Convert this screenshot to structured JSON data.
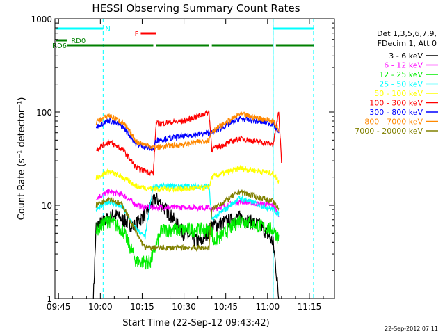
{
  "chart_data": {
    "type": "line",
    "title": "HESSI Observing Summary Count Rates",
    "xlabel": "Start Time (22-Sep-12 09:43:42)",
    "ylabel": "Count Rate (s⁻¹ detector⁻¹)",
    "y_scale": "log",
    "ylim": [
      1,
      1000
    ],
    "xlim": [
      "09:43:42",
      "11:24:00"
    ],
    "x_ticks": [
      "09:45",
      "10:00",
      "10:15",
      "10:30",
      "10:45",
      "11:00",
      "11:15"
    ],
    "y_ticks": [
      "1",
      "10",
      "100",
      "1000"
    ],
    "grid": false,
    "legend_position": "right",
    "legend_header": [
      "Det 1,3,5,6,7,9,",
      "FDecim 1, Att 0"
    ],
    "footer": "22-Sep-2012 07:11",
    "series": [
      {
        "name": "3 - 6 keV",
        "color": "#000000",
        "points": [
          [
            "09:57:30",
            1.0
          ],
          [
            "09:58:30",
            6.0
          ],
          [
            "10:05:00",
            8.0
          ],
          [
            "10:12:00",
            6.0
          ],
          [
            "10:16:00",
            8.0
          ],
          [
            "10:20:00",
            12.0
          ],
          [
            "10:25:00",
            8.0
          ],
          [
            "10:30:00",
            5.0
          ],
          [
            "10:36:00",
            4.0
          ],
          [
            "10:40:00",
            6.0
          ],
          [
            "10:50:00",
            7.5
          ],
          [
            "10:58:00",
            6.0
          ],
          [
            "11:02:00",
            4.0
          ],
          [
            "11:03:30",
            1.5
          ],
          [
            "11:04:00",
            1.0
          ]
        ]
      },
      {
        "name": "6 - 12 keV",
        "color": "#ff00ff",
        "points": [
          [
            "09:58:30",
            12.0
          ],
          [
            "10:03:00",
            14.0
          ],
          [
            "10:08:00",
            13.0
          ],
          [
            "10:13:00",
            10.0
          ],
          [
            "10:16:00",
            9.5
          ],
          [
            "10:19:00",
            9.5
          ],
          [
            "10:30:00",
            9.5
          ],
          [
            "10:39:00",
            9.5
          ],
          [
            "10:40:00",
            9.0
          ],
          [
            "10:50:00",
            11.0
          ],
          [
            "11:02:00",
            10.0
          ],
          [
            "11:04:00",
            8.0
          ]
        ]
      },
      {
        "name": "12 - 25 keV",
        "color": "#00ee00",
        "points": [
          [
            "09:58:30",
            5.5
          ],
          [
            "10:03:00",
            7.0
          ],
          [
            "10:08:00",
            5.5
          ],
          [
            "10:13:00",
            2.5
          ],
          [
            "10:18:00",
            2.5
          ],
          [
            "10:22:00",
            5.5
          ],
          [
            "10:40:00",
            5.5
          ],
          [
            "10:40:30",
            4.0
          ],
          [
            "10:50:00",
            7.0
          ],
          [
            "11:02:00",
            5.5
          ],
          [
            "11:04:00",
            4.5
          ]
        ]
      },
      {
        "name": "25 - 50 keV",
        "color": "#00ffff",
        "points": [
          [
            "09:58:30",
            9.0
          ],
          [
            "10:03:00",
            11.0
          ],
          [
            "10:08:00",
            9.5
          ],
          [
            "10:12:00",
            6.0
          ],
          [
            "10:16:00",
            4.5
          ],
          [
            "10:19:00",
            16.0
          ],
          [
            "10:30:00",
            16.0
          ],
          [
            "10:39:00",
            16.0
          ],
          [
            "10:40:00",
            7.0
          ],
          [
            "10:50:00",
            12.0
          ],
          [
            "11:02:00",
            9.0
          ],
          [
            "11:04:00",
            8.0
          ]
        ]
      },
      {
        "name": "50 - 100 keV",
        "color": "#ffff00",
        "points": [
          [
            "09:58:30",
            20.0
          ],
          [
            "10:03:00",
            23.0
          ],
          [
            "10:08:00",
            20.0
          ],
          [
            "10:13:00",
            16.0
          ],
          [
            "10:19:00",
            15.0
          ],
          [
            "10:20:00",
            15.0
          ],
          [
            "10:30:00",
            15.0
          ],
          [
            "10:39:00",
            15.5
          ],
          [
            "10:40:00",
            20.0
          ],
          [
            "10:50:00",
            25.0
          ],
          [
            "11:02:00",
            22.0
          ],
          [
            "11:04:00",
            18.0
          ]
        ]
      },
      {
        "name": "100 - 300 keV",
        "color": "#ff0000",
        "points": [
          [
            "09:58:30",
            40.0
          ],
          [
            "10:03:00",
            48.0
          ],
          [
            "10:08:00",
            40.0
          ],
          [
            "10:13:00",
            25.0
          ],
          [
            "10:19:00",
            22.0
          ],
          [
            "10:20:00",
            75.0
          ],
          [
            "10:30:00",
            80.0
          ],
          [
            "10:39:00",
            100.0
          ],
          [
            "10:40:00",
            40.0
          ],
          [
            "10:50:00",
            52.0
          ],
          [
            "11:02:00",
            45.0
          ],
          [
            "11:04:00",
            100.0
          ],
          [
            "11:05:00",
            30.0
          ]
        ]
      },
      {
        "name": "300 - 800 keV",
        "color": "#0000ff",
        "points": [
          [
            "09:58:30",
            70.0
          ],
          [
            "10:03:00",
            82.0
          ],
          [
            "10:08:00",
            70.0
          ],
          [
            "10:13:00",
            45.0
          ],
          [
            "10:19:00",
            40.0
          ],
          [
            "10:20:00",
            50.0
          ],
          [
            "10:30:00",
            55.0
          ],
          [
            "10:39:00",
            60.0
          ],
          [
            "10:40:00",
            60.0
          ],
          [
            "10:50:00",
            85.0
          ],
          [
            "11:02:00",
            75.0
          ],
          [
            "11:04:00",
            60.0
          ]
        ]
      },
      {
        "name": "800 - 7000 keV",
        "color": "#ff8800",
        "points": [
          [
            "09:58:30",
            78.0
          ],
          [
            "10:03:00",
            92.0
          ],
          [
            "10:08:00",
            78.0
          ],
          [
            "10:13:00",
            48.0
          ],
          [
            "10:19:00",
            42.0
          ],
          [
            "10:20:00",
            42.0
          ],
          [
            "10:30:00",
            45.0
          ],
          [
            "10:39:00",
            50.0
          ],
          [
            "10:40:00",
            62.0
          ],
          [
            "10:50:00",
            95.0
          ],
          [
            "11:02:00",
            80.0
          ],
          [
            "11:04:00",
            65.0
          ]
        ]
      },
      {
        "name": "7000 - 20000 keV",
        "color": "#808000",
        "points": [
          [
            "09:58:30",
            10.0
          ],
          [
            "10:03:00",
            12.0
          ],
          [
            "10:08:00",
            10.0
          ],
          [
            "10:13:00",
            5.0
          ],
          [
            "10:16:00",
            3.5
          ],
          [
            "10:30:00",
            3.5
          ],
          [
            "10:39:00",
            3.5
          ],
          [
            "10:40:00",
            9.0
          ],
          [
            "10:50:00",
            14.0
          ],
          [
            "11:02:00",
            11.0
          ],
          [
            "11:04:00",
            9.0
          ]
        ]
      }
    ],
    "flags": [
      {
        "label": "N",
        "color": "#00ffff",
        "segments": [
          [
            "09:44:00",
            "10:01:00"
          ],
          [
            "11:02:00",
            "11:16:30"
          ]
        ]
      },
      {
        "label": "F",
        "color": "#ff0000",
        "segments": [
          [
            "10:14:30",
            "10:20:00"
          ]
        ]
      },
      {
        "label": "RD0",
        "color": "#008000",
        "segments": [
          [
            "09:44:00",
            "09:48:00"
          ]
        ]
      },
      {
        "label": "RD6",
        "color": "#008000",
        "segments": [
          [
            "09:48:00",
            "10:19:00"
          ],
          [
            "10:20:00",
            "10:39:00"
          ],
          [
            "10:40:00",
            "11:02:00"
          ],
          [
            "11:03:00",
            "11:16:30"
          ]
        ]
      }
    ],
    "vlines_solid": [
      "11:02:00"
    ],
    "vlines_dashed": [
      "10:01:00",
      "11:02:00",
      "11:16:30"
    ]
  }
}
